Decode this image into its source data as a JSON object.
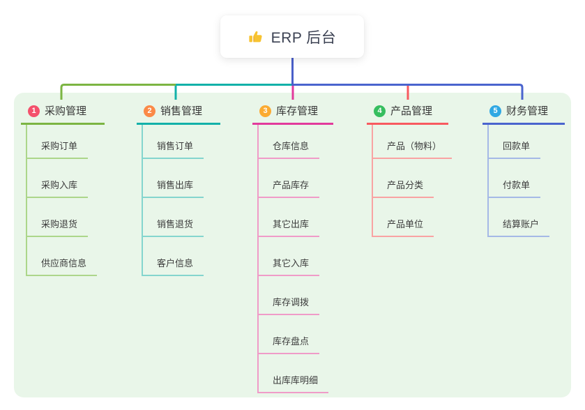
{
  "root": {
    "title": "ERP 后台",
    "icon": "thumbs-up-icon"
  },
  "colors": {
    "canvas_bg": "#FFFFFF",
    "panel_bg": "#E9F6E9",
    "node_bg": "#FFFFFF",
    "root_text": "#3B4152",
    "header_text": "#383838",
    "child_text": "#3C3C3C",
    "trunk": "#4A5FC9",
    "thumb_yellow": "#F7C331"
  },
  "branches": [
    {
      "num": "1",
      "label": "采购管理",
      "badge_color": "#F4516C",
      "line_color": "#7CB543",
      "child_line_color": "#ACD68A",
      "children": [
        "采购订单",
        "采购入库",
        "采购退货",
        "供应商信息"
      ]
    },
    {
      "num": "2",
      "label": "销售管理",
      "badge_color": "#FB8A47",
      "line_color": "#13B1A9",
      "child_line_color": "#84D5CE",
      "children": [
        "销售订单",
        "销售出库",
        "销售退货",
        "客户信息"
      ]
    },
    {
      "num": "3",
      "label": "库存管理",
      "badge_color": "#FBAB32",
      "line_color": "#E23A9C",
      "child_line_color": "#F09BC8",
      "children": [
        "仓库信息",
        "产品库存",
        "其它出库",
        "其它入库",
        "库存调拨",
        "库存盘点",
        "出库库明细"
      ]
    },
    {
      "num": "4",
      "label": "产品管理",
      "badge_color": "#36BE5F",
      "line_color": "#F85A60",
      "child_line_color": "#F9A3A3",
      "children": [
        "产品（物料）",
        "产品分类",
        "产品单位"
      ]
    },
    {
      "num": "5",
      "label": "财务管理",
      "badge_color": "#30A8E3",
      "line_color": "#4A64CE",
      "child_line_color": "#A5B9E6",
      "children": [
        "回款单",
        "付款单",
        "结算账户"
      ]
    }
  ]
}
